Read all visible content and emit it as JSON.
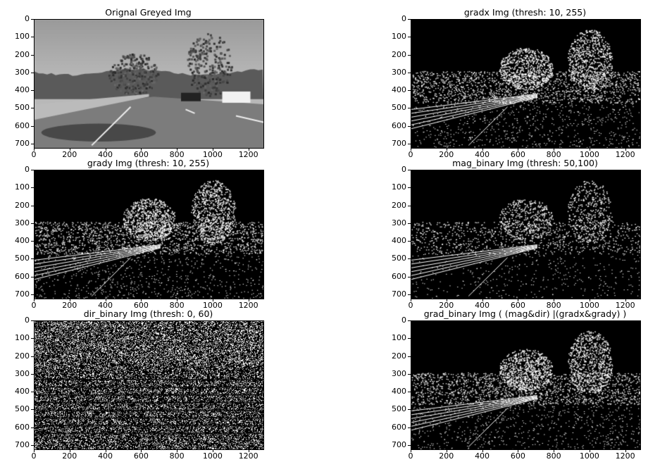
{
  "panels": [
    {
      "id": "orig",
      "title": "Orignal Greyed Img",
      "kind": "grey"
    },
    {
      "id": "gradx",
      "title": "gradx Img (thresh: 10, 255)",
      "kind": "binary-dense"
    },
    {
      "id": "grady",
      "title": "grady Img (thresh: 10, 255)",
      "kind": "binary-dense"
    },
    {
      "id": "mag",
      "title": "mag_binary Img (thresh: 50,100)",
      "kind": "binary-sparse"
    },
    {
      "id": "dir",
      "title": "dir_binary Img (thresh: 0, 60)",
      "kind": "binary-noise"
    },
    {
      "id": "grad",
      "title": "grad_binary Img ( (mag&dir) |(gradx&grady) )",
      "kind": "binary-dense"
    }
  ],
  "x_ticks": [
    "0",
    "200",
    "400",
    "600",
    "800",
    "1000",
    "1200"
  ],
  "y_ticks": [
    "0",
    "100",
    "200",
    "300",
    "400",
    "500",
    "600",
    "700"
  ],
  "x_tick_values": [
    0,
    200,
    400,
    600,
    800,
    1000,
    1200
  ],
  "y_tick_values": [
    0,
    100,
    200,
    300,
    400,
    500,
    600,
    700
  ],
  "image_size": {
    "width": 1280,
    "height": 720
  }
}
